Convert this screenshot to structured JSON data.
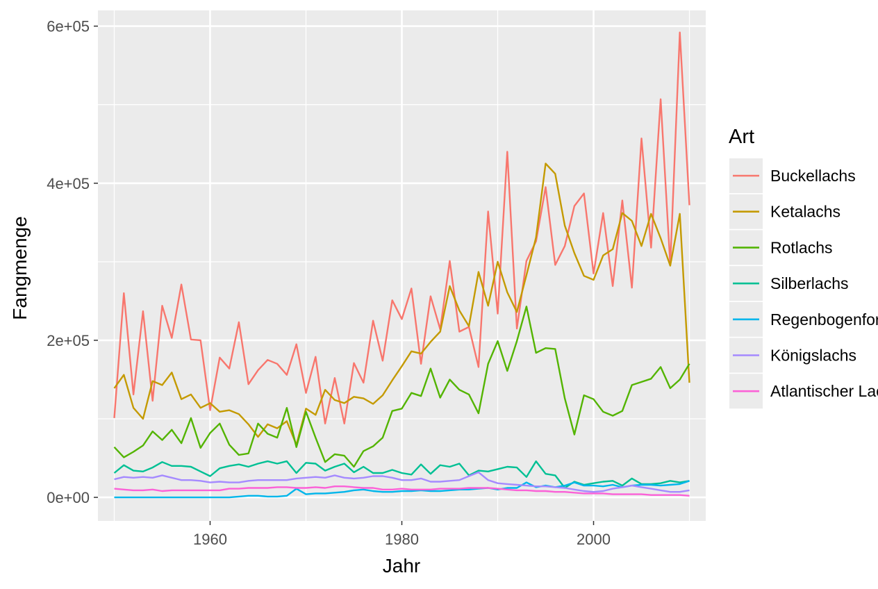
{
  "chart_data": {
    "type": "line",
    "xlabel": "Jahr",
    "ylabel": "Fangmenge",
    "xlim": [
      1948.3,
      2011.7
    ],
    "ylim": [
      -30000,
      620000
    ],
    "x_ticks": [
      1960,
      1980,
      2000
    ],
    "x_tick_labels": [
      "1960",
      "1980",
      "2000"
    ],
    "y_ticks": [
      0,
      200000,
      400000,
      600000
    ],
    "y_tick_labels": [
      "0e+00",
      "2e+05",
      "4e+05",
      "6e+05"
    ],
    "grid": true,
    "legend": {
      "title": "Art",
      "placement": "right",
      "entries": [
        "Buckellachs",
        "Ketalachs",
        "Rotlachs",
        "Silberlachs",
        "Regenbogenforelle",
        "Königslachs",
        "Atlantischer Lachs"
      ]
    },
    "x": [
      1950,
      1951,
      1952,
      1953,
      1954,
      1955,
      1956,
      1957,
      1958,
      1959,
      1960,
      1961,
      1962,
      1963,
      1964,
      1965,
      1966,
      1967,
      1968,
      1969,
      1970,
      1971,
      1972,
      1973,
      1974,
      1975,
      1976,
      1977,
      1978,
      1979,
      1980,
      1981,
      1982,
      1983,
      1984,
      1985,
      1986,
      1987,
      1988,
      1989,
      1990,
      1991,
      1992,
      1993,
      1994,
      1995,
      1996,
      1997,
      1998,
      1999,
      2000,
      2001,
      2002,
      2003,
      2004,
      2005,
      2006,
      2007,
      2008,
      2009,
      2010
    ],
    "series": [
      {
        "name": "Buckellachs",
        "color": "#F8766D",
        "values": [
          101000,
          260000,
          131000,
          237000,
          123000,
          244000,
          203000,
          271000,
          201000,
          200000,
          111000,
          178000,
          164000,
          223000,
          144000,
          162000,
          175000,
          170000,
          156000,
          195000,
          133000,
          179000,
          94000,
          152000,
          94000,
          171000,
          146000,
          225000,
          174000,
          251000,
          227000,
          266000,
          170000,
          256000,
          214000,
          301000,
          211000,
          217000,
          166000,
          364000,
          234000,
          440000,
          215000,
          301000,
          326000,
          395000,
          296000,
          320000,
          371000,
          387000,
          285000,
          362000,
          269000,
          378000,
          267000,
          457000,
          318000,
          507000,
          296000,
          592000,
          372000
        ]
      },
      {
        "name": "Ketalachs",
        "color": "#C49A00",
        "values": [
          139000,
          156000,
          114000,
          100000,
          148000,
          143000,
          159000,
          125000,
          131000,
          114000,
          120000,
          109000,
          111000,
          106000,
          93000,
          77000,
          93000,
          88000,
          97000,
          67000,
          113000,
          105000,
          137000,
          124000,
          120000,
          128000,
          126000,
          119000,
          130000,
          149000,
          167000,
          186000,
          183000,
          198000,
          211000,
          269000,
          238000,
          218000,
          287000,
          244000,
          300000,
          261000,
          236000,
          283000,
          331000,
          425000,
          412000,
          346000,
          311000,
          282000,
          277000,
          308000,
          316000,
          362000,
          352000,
          320000,
          361000,
          330000,
          295000,
          361000,
          146000
        ]
      },
      {
        "name": "Rotlachs",
        "color": "#53B400",
        "values": [
          64000,
          51000,
          58000,
          66000,
          84000,
          73000,
          86000,
          69000,
          101000,
          63000,
          82000,
          94000,
          67000,
          54000,
          56000,
          94000,
          81000,
          76000,
          114000,
          64000,
          109000,
          76000,
          45000,
          55000,
          53000,
          39000,
          59000,
          65000,
          76000,
          110000,
          113000,
          133000,
          129000,
          164000,
          127000,
          150000,
          137000,
          131000,
          107000,
          170000,
          199000,
          161000,
          199000,
          243000,
          184000,
          190000,
          189000,
          126000,
          80000,
          130000,
          125000,
          109000,
          104000,
          110000,
          143000,
          147000,
          151000,
          166000,
          139000,
          150000,
          170000
        ]
      },
      {
        "name": "Silberlachs",
        "color": "#00C094",
        "values": [
          31000,
          41000,
          34000,
          33000,
          38000,
          45000,
          40000,
          40000,
          39000,
          33000,
          27000,
          37000,
          40000,
          42000,
          39000,
          43000,
          46000,
          43000,
          46000,
          31000,
          44000,
          43000,
          34000,
          39000,
          43000,
          32000,
          39000,
          31000,
          31000,
          35000,
          31000,
          29000,
          42000,
          30000,
          41000,
          39000,
          43000,
          28000,
          34000,
          33000,
          36000,
          39000,
          38000,
          26000,
          46000,
          30000,
          28000,
          12000,
          20000,
          16000,
          18000,
          20000,
          21000,
          15000,
          24000,
          17000,
          17000,
          18000,
          21000,
          19000,
          21000
        ]
      },
      {
        "name": "Regenbogenforelle",
        "color": "#00B6EB",
        "values": [
          0,
          0,
          0,
          0,
          0,
          0,
          0,
          0,
          0,
          0,
          0,
          0,
          0,
          1000,
          2000,
          2000,
          1000,
          1000,
          2000,
          11000,
          4000,
          5000,
          5000,
          6000,
          7000,
          9000,
          10000,
          8000,
          7000,
          7000,
          8000,
          8000,
          9000,
          8000,
          8000,
          9000,
          10000,
          10000,
          11000,
          12000,
          10000,
          12000,
          12000,
          19000,
          13000,
          15000,
          13000,
          15000,
          19000,
          15000,
          15000,
          14000,
          16000,
          13000,
          15000,
          16000,
          16000,
          15000,
          16000,
          17000,
          21000
        ]
      },
      {
        "name": "Königslachs",
        "color": "#A58AFF",
        "values": [
          23000,
          26000,
          25000,
          26000,
          25000,
          28000,
          25000,
          22000,
          22000,
          21000,
          19000,
          20000,
          19000,
          19000,
          21000,
          22000,
          22000,
          22000,
          22000,
          24000,
          25000,
          26000,
          25000,
          28000,
          25000,
          24000,
          25000,
          27000,
          27000,
          25000,
          22000,
          22000,
          24000,
          20000,
          20000,
          21000,
          22000,
          27000,
          32000,
          22000,
          18000,
          17000,
          16000,
          15000,
          14000,
          14000,
          13000,
          12000,
          10000,
          8000,
          7000,
          8000,
          11000,
          13000,
          15000,
          13000,
          11000,
          9000,
          7000,
          7000,
          9000
        ]
      },
      {
        "name": "Atlantischer Lachs",
        "color": "#FB61D7",
        "values": [
          11000,
          10000,
          9000,
          9000,
          10000,
          8000,
          9000,
          9000,
          9000,
          9000,
          9000,
          9000,
          11000,
          11000,
          12000,
          12000,
          12000,
          13000,
          13000,
          12000,
          12000,
          13000,
          12000,
          14000,
          14000,
          13000,
          12000,
          12000,
          10000,
          10000,
          11000,
          10000,
          10000,
          10000,
          11000,
          11000,
          11000,
          12000,
          12000,
          12000,
          11000,
          10000,
          9000,
          9000,
          8000,
          8000,
          7000,
          7000,
          6000,
          5000,
          5000,
          5000,
          4000,
          4000,
          4000,
          4000,
          3000,
          3000,
          3000,
          3000,
          2000
        ]
      }
    ]
  }
}
